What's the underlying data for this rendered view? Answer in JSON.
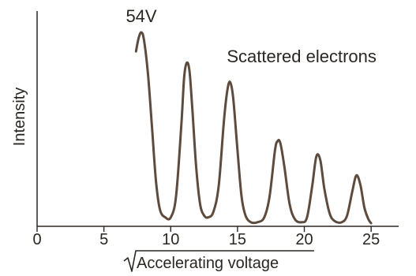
{
  "chart_data": {
    "type": "line",
    "title": "",
    "xlabel": "Accelerating voltage",
    "xlabel_radical": true,
    "ylabel": "Intensity",
    "xlim": [
      0,
      27
    ],
    "ylim": [
      0,
      1
    ],
    "xticks": [
      0,
      5,
      10,
      15,
      20,
      25
    ],
    "grid": false,
    "legend": "none",
    "colors": {
      "curve": "#5d4c3d",
      "axes": "#2a2622"
    },
    "annotations": [
      {
        "text": "54V",
        "x": 7.8,
        "y": 1.0
      },
      {
        "text": "Scattered electrons",
        "x": 19.8,
        "y": 0.79
      }
    ],
    "series": [
      {
        "name": "",
        "x": [
          7.4,
          7.6,
          7.8,
          8.0,
          8.3,
          8.6,
          8.9,
          9.2,
          9.6,
          10.0,
          10.4,
          10.8,
          11.0,
          11.2,
          11.4,
          11.6,
          11.9,
          12.2,
          12.5,
          12.8,
          13.2,
          13.6,
          14.0,
          14.3,
          14.5,
          14.7,
          15.0,
          15.3,
          15.6,
          16.0,
          16.5,
          17.0,
          17.4,
          17.8,
          18.0,
          18.2,
          18.5,
          18.9,
          19.3,
          19.8,
          20.2,
          20.6,
          20.9,
          21.2,
          21.5,
          21.9,
          22.3,
          22.8,
          23.2,
          23.6,
          23.9,
          24.2,
          24.5,
          24.8,
          25.0
        ],
        "y": [
          0.9,
          0.97,
          1.0,
          0.96,
          0.78,
          0.5,
          0.22,
          0.07,
          0.03,
          0.03,
          0.14,
          0.52,
          0.76,
          0.84,
          0.8,
          0.62,
          0.3,
          0.1,
          0.04,
          0.03,
          0.06,
          0.2,
          0.55,
          0.72,
          0.73,
          0.64,
          0.38,
          0.14,
          0.04,
          0.005,
          0.005,
          0.03,
          0.14,
          0.38,
          0.43,
          0.42,
          0.3,
          0.1,
          0.02,
          0.005,
          0.03,
          0.2,
          0.35,
          0.33,
          0.18,
          0.05,
          0.01,
          0.005,
          0.04,
          0.17,
          0.25,
          0.2,
          0.08,
          0.02,
          0.0
        ]
      }
    ]
  }
}
